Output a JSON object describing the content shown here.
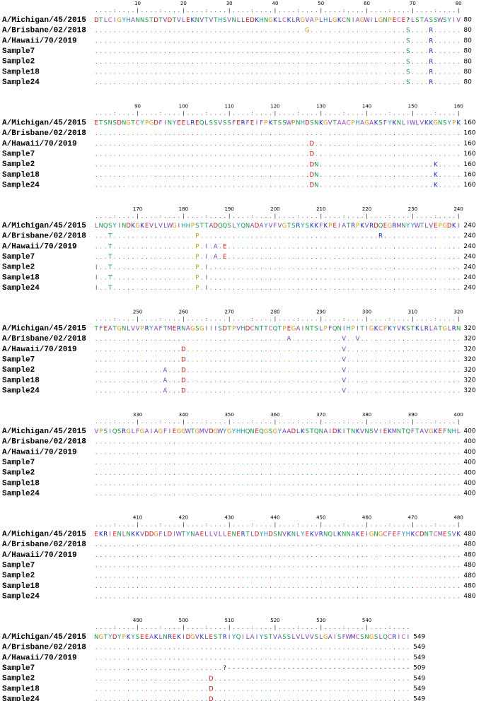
{
  "blocks": [
    {
      "ruler": [
        10,
        20,
        30,
        40,
        50,
        60,
        70,
        80
      ],
      "rows": [
        {
          "name": "A/Michigan/45/2015",
          "sequence": "DTLCIGYHANNSTDTVDTVLEKNVTVTHSVNLLEDKHNGKLCKLRGVAPLHLGKCNIAGWILGNPECE?LSTASSWSYIV",
          "end": 80
        },
        {
          "name": "A/Brisbane/02/2018",
          "sequence": "..............................................G.....................S....R......",
          "end": 80
        },
        {
          "name": "A/Hawaii/70/2019",
          "sequence": "....................................................................S....R......",
          "end": 80
        },
        {
          "name": "Sample7",
          "sequence": "....................................................................S....R......",
          "end": 80
        },
        {
          "name": "Sample2",
          "sequence": "....................................................................S....R......",
          "end": 80
        },
        {
          "name": "Sample18",
          "sequence": "....................................................................S....R......",
          "end": 80
        },
        {
          "name": "Sample24",
          "sequence": "....................................................................S....R......",
          "end": 80
        }
      ]
    },
    {
      "ruler": [
        90,
        100,
        110,
        120,
        130,
        140,
        150,
        160
      ],
      "rows": [
        {
          "name": "A/Michigan/45/2015",
          "sequence": "ETSNSDNGTCYPGDFINYEELREQLSSVSSFERFEIFPKTSSWPNHDSNKGVTAACPHAGAKSFYKNLIWLVKKGNSYPK",
          "end": 160
        },
        {
          "name": "A/Brisbane/02/2018",
          "sequence": "................................................................................",
          "end": 160
        },
        {
          "name": "A/Hawaii/70/2019",
          "sequence": "...............................................D................................",
          "end": 160
        },
        {
          "name": "Sample7",
          "sequence": "...............................................D................................",
          "end": 160
        },
        {
          "name": "Sample2",
          "sequence": "...............................................DN.........................K.....",
          "end": 160
        },
        {
          "name": "Sample18",
          "sequence": "...............................................DN.........................K.....",
          "end": 160
        },
        {
          "name": "Sample24",
          "sequence": "...............................................DN.........................K.....",
          "end": 160
        }
      ]
    },
    {
      "ruler": [
        170,
        180,
        190,
        200,
        210,
        220,
        230,
        240
      ],
      "rows": [
        {
          "name": "A/Michigan/45/2015",
          "sequence": "LNQSYINDKGKEVLVLWGIHHPSTTADQQSLYQNADAYVFVGTSRYSKKFKPEIATRPKVRDQEGRMNYYWTLVEPGDKI",
          "end": 240
        },
        {
          "name": "A/Brisbane/02/2018",
          "sequence": "...T..................P.......................................R.................",
          "end": 240
        },
        {
          "name": "A/Hawaii/70/2019",
          "sequence": "...T..................P.I.A.E...................................................",
          "end": 240
        },
        {
          "name": "Sample7",
          "sequence": "...T..................P.I.A.E...................................................",
          "end": 240
        },
        {
          "name": "Sample2",
          "sequence": "I..T..................P.I.......................................................",
          "end": 240
        },
        {
          "name": "Sample18",
          "sequence": "I..T..................P.I.......................................................",
          "end": 240
        },
        {
          "name": "Sample24",
          "sequence": "I..T..................P.I.......................................................",
          "end": 240
        }
      ]
    },
    {
      "ruler": [
        250,
        260,
        270,
        280,
        290,
        300,
        310,
        320
      ],
      "rows": [
        {
          "name": "A/Michigan/45/2015",
          "sequence": "TFEATGNLVVPRYAFTMERNAGSGIIISDTPVHDCNTTCQTPEGAINTSLPFQNIHPITIGKCPKYVKSTKLRLATGLRN",
          "end": 320
        },
        {
          "name": "A/Brisbane/02/2018",
          "sequence": "..........................................A...........V..V......................",
          "end": 320
        },
        {
          "name": "A/Hawaii/70/2019",
          "sequence": "...................D..................................V.........................",
          "end": 320
        },
        {
          "name": "Sample7",
          "sequence": "...................D..................................V.........................",
          "end": 320
        },
        {
          "name": "Sample2",
          "sequence": "...............A...D..................................V.........................",
          "end": 320
        },
        {
          "name": "Sample18",
          "sequence": "...............A...D..................................V.........................",
          "end": 320
        },
        {
          "name": "Sample24",
          "sequence": "...............A...D..................................V.........................",
          "end": 320
        }
      ]
    },
    {
      "ruler": [
        330,
        340,
        350,
        360,
        370,
        380,
        390,
        400
      ],
      "rows": [
        {
          "name": "A/Michigan/45/2015",
          "sequence": "VPSIQSRGLFGAIAGFIEGGWTGMVDGWYGYHHQNEQGSGYAADLKSTQNAIDKITNKVNSVIEKMNTQFTAVGKEFNHL",
          "end": 400
        },
        {
          "name": "A/Brisbane/02/2018",
          "sequence": "................................................................................",
          "end": 400
        },
        {
          "name": "A/Hawaii/70/2019",
          "sequence": "................................................................................",
          "end": 400
        },
        {
          "name": "Sample7",
          "sequence": "................................................................................",
          "end": 400
        },
        {
          "name": "Sample2",
          "sequence": "................................................................................",
          "end": 400
        },
        {
          "name": "Sample18",
          "sequence": "................................................................................",
          "end": 400
        },
        {
          "name": "Sample24",
          "sequence": "................................................................................",
          "end": 400
        }
      ]
    },
    {
      "ruler": [
        410,
        420,
        430,
        440,
        450,
        460,
        470,
        480
      ],
      "rows": [
        {
          "name": "A/Michigan/45/2015",
          "sequence": "EKRIENLNKKVDDGFLDIWTYNAELLVLLENERTLDYHDSNVKNLYEKVRNQLKNNAKEIGNGCFEFYHKCDNTCMESVK",
          "end": 480
        },
        {
          "name": "A/Brisbane/02/2018",
          "sequence": "................................................................................",
          "end": 480
        },
        {
          "name": "A/Hawaii/70/2019",
          "sequence": "................................................................................",
          "end": 480
        },
        {
          "name": "Sample7",
          "sequence": "................................................................................",
          "end": 480
        },
        {
          "name": "Sample2",
          "sequence": "................................................................................",
          "end": 480
        },
        {
          "name": "Sample18",
          "sequence": "................................................................................",
          "end": 480
        },
        {
          "name": "Sample24",
          "sequence": "................................................................................",
          "end": 480
        }
      ]
    },
    {
      "ruler": [
        490,
        500,
        510,
        520,
        530,
        540
      ],
      "rows": [
        {
          "name": "A/Michigan/45/2015",
          "sequence": "NGTYDYPKYSEEAKLNREKIDGVKLESTRIYQILAIYSTVASSLVLVVSLGAISFWMCSNGSLQCRICI",
          "end": 549
        },
        {
          "name": "A/Brisbane/02/2018",
          "sequence": ".....................................................................",
          "end": 549
        },
        {
          "name": "A/Hawaii/70/2019",
          "sequence": ".....................................................................",
          "end": 549
        },
        {
          "name": "Sample7",
          "sequence": "............................?----------------------------------------",
          "end": 509
        },
        {
          "name": "Sample2",
          "sequence": ".........................D...........................................",
          "end": 549
        },
        {
          "name": "Sample18",
          "sequence": ".........................D...........................................",
          "end": 549
        },
        {
          "name": "Sample24",
          "sequence": ".........................D...........................................",
          "end": 549
        }
      ]
    }
  ]
}
